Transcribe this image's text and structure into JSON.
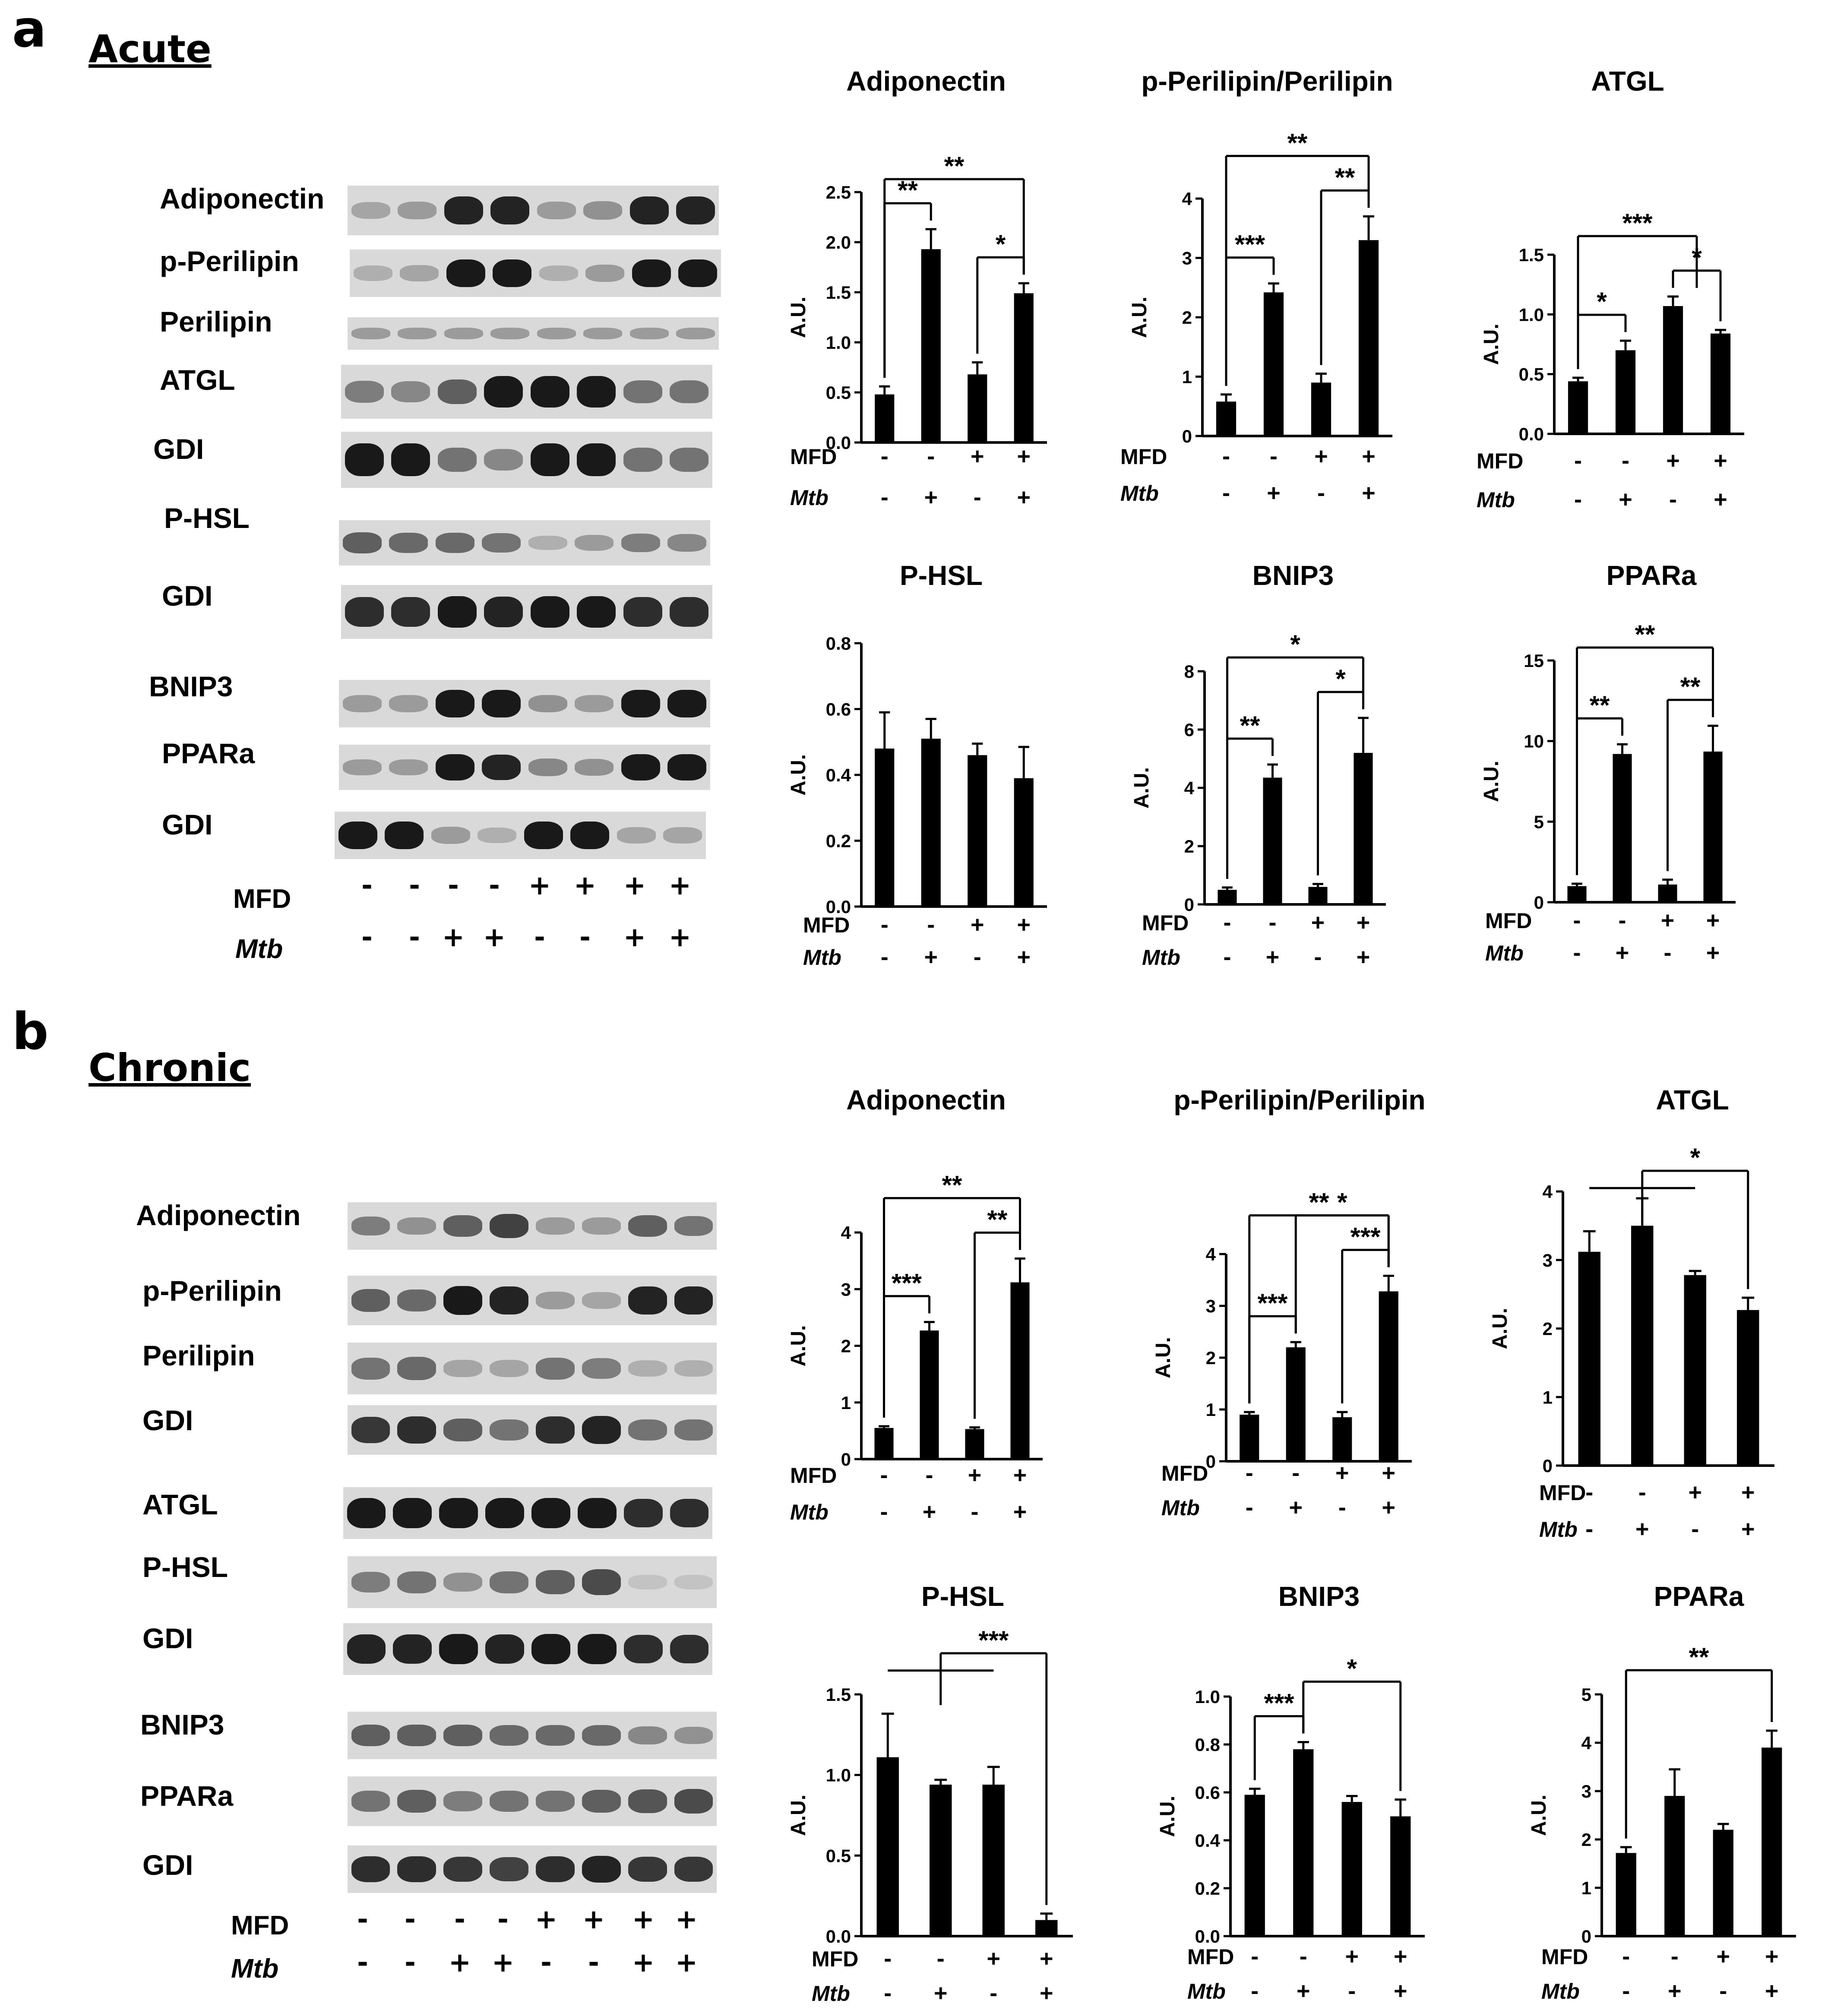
{
  "panels": [
    {
      "letter": "a",
      "title": "Acute",
      "blot_labels": [
        "Adiponectin",
        "p-Perilipin",
        "Perilipin",
        "ATGL",
        "GDI",
        "P-HSL",
        "GDI",
        "BNIP3",
        "PPARa",
        "GDI"
      ],
      "treatment_rows": [
        {
          "label": "MFD",
          "signs": [
            "-",
            "-",
            "-",
            "-",
            "+",
            "+",
            "+",
            "+"
          ]
        },
        {
          "label": "Mtb",
          "signs": [
            "-",
            "-",
            "+",
            "+",
            "-",
            "-",
            "+",
            "+"
          ]
        }
      ]
    },
    {
      "letter": "b",
      "title": "Chronic",
      "blot_labels": [
        "Adiponectin",
        "p-Perilipin",
        "Perilipin",
        "GDI",
        "ATGL",
        "P-HSL",
        "GDI",
        "BNIP3",
        "PPARa",
        "GDI"
      ],
      "treatment_rows": [
        {
          "label": "MFD",
          "signs": [
            "-",
            "-",
            "-",
            "-",
            "+",
            "+",
            "+",
            "+"
          ]
        },
        {
          "label": "Mtb",
          "signs": [
            "-",
            "-",
            "+",
            "+",
            "-",
            "-",
            "+",
            "+"
          ]
        }
      ]
    }
  ],
  "chart_data": [
    {
      "type": "bar",
      "title": "Adiponectin",
      "ylabel": "A.U.",
      "ylim": [
        0,
        2.5
      ],
      "yticks": [
        "0.0",
        "0.5",
        "1.0",
        "1.5",
        "2.0",
        "2.5"
      ],
      "values": [
        0.48,
        1.93,
        0.68,
        1.49
      ],
      "errors": [
        0.08,
        0.2,
        0.12,
        0.1
      ],
      "groups": {
        "MFD": [
          "-",
          "-",
          "+",
          "+"
        ],
        "Mtb": [
          "-",
          "+",
          "-",
          "+"
        ]
      },
      "significance": [
        {
          "from": 0,
          "to": 1,
          "label": "**"
        },
        {
          "from": 2,
          "to": 3,
          "label": "*"
        },
        {
          "from": 0,
          "to": 3,
          "label": "**"
        }
      ]
    },
    {
      "type": "bar",
      "title": "p-Perilipin/Perilipin",
      "ylabel": "A.U.",
      "ylim": [
        0,
        4
      ],
      "yticks": [
        "0",
        "1",
        "2",
        "3",
        "4"
      ],
      "values": [
        0.58,
        2.42,
        0.9,
        3.3
      ],
      "errors": [
        0.12,
        0.15,
        0.15,
        0.4
      ],
      "groups": {
        "MFD": [
          "-",
          "-",
          "+",
          "+"
        ],
        "Mtb": [
          "-",
          "+",
          "-",
          "+"
        ]
      },
      "significance": [
        {
          "from": 0,
          "to": 1,
          "label": "***"
        },
        {
          "from": 2,
          "to": 3,
          "label": "**"
        },
        {
          "from": 0,
          "to": 3,
          "label": "**"
        }
      ]
    },
    {
      "type": "bar",
      "title": "ATGL",
      "ylabel": "A.U.",
      "ylim": [
        0,
        1.5
      ],
      "yticks": [
        "0.0",
        "0.5",
        "1.0",
        "1.5"
      ],
      "values": [
        0.44,
        0.7,
        1.07,
        0.84
      ],
      "errors": [
        0.03,
        0.08,
        0.08,
        0.03
      ],
      "groups": {
        "MFD": [
          "-",
          "-",
          "+",
          "+"
        ],
        "Mtb": [
          "-",
          "+",
          "-",
          "+"
        ]
      },
      "significance": [
        {
          "from": 0,
          "to": 1,
          "label": "*"
        },
        {
          "from": 2,
          "to": 3,
          "label": "*"
        },
        {
          "from": 0,
          "to": "2-3",
          "label": "***"
        }
      ]
    },
    {
      "type": "bar",
      "title": "P-HSL",
      "ylabel": "A.U.",
      "ylim": [
        0,
        0.8
      ],
      "yticks": [
        "0.0",
        "0.2",
        "0.4",
        "0.6",
        "0.8"
      ],
      "values": [
        0.48,
        0.51,
        0.46,
        0.39
      ],
      "errors": [
        0.11,
        0.06,
        0.035,
        0.095
      ],
      "groups": {
        "MFD": [
          "-",
          "-",
          "+",
          "+"
        ],
        "Mtb": [
          "-",
          "+",
          "-",
          "+"
        ]
      },
      "significance": []
    },
    {
      "type": "bar",
      "title": "BNIP3",
      "ylabel": "A.U.",
      "ylim": [
        0,
        8
      ],
      "yticks": [
        "0",
        "2",
        "4",
        "6",
        "8"
      ],
      "values": [
        0.5,
        4.35,
        0.6,
        5.2
      ],
      "errors": [
        0.08,
        0.45,
        0.1,
        1.2
      ],
      "groups": {
        "MFD": [
          "-",
          "-",
          "+",
          "+"
        ],
        "Mtb": [
          "-",
          "+",
          "-",
          "+"
        ]
      },
      "significance": [
        {
          "from": 0,
          "to": 1,
          "label": "**"
        },
        {
          "from": 2,
          "to": 3,
          "label": "*"
        },
        {
          "from": 0,
          "to": 3,
          "label": "*"
        }
      ]
    },
    {
      "type": "bar",
      "title": "PPARa",
      "ylabel": "A.U.",
      "ylim": [
        0,
        15
      ],
      "yticks": [
        "0",
        "5",
        "10",
        "15"
      ],
      "values": [
        1.0,
        9.2,
        1.1,
        9.35
      ],
      "errors": [
        0.15,
        0.6,
        0.3,
        1.6
      ],
      "groups": {
        "MFD": [
          "-",
          "-",
          "+",
          "+"
        ],
        "Mtb": [
          "-",
          "+",
          "-",
          "+"
        ]
      },
      "significance": [
        {
          "from": 0,
          "to": 1,
          "label": "**"
        },
        {
          "from": 2,
          "to": 3,
          "label": "**"
        },
        {
          "from": 0,
          "to": 3,
          "label": "**"
        }
      ]
    },
    {
      "type": "bar",
      "title": "Adiponectin",
      "ylabel": "A.U.",
      "ylim": [
        0,
        4
      ],
      "yticks": [
        "0",
        "1",
        "2",
        "3",
        "4"
      ],
      "values": [
        0.55,
        2.27,
        0.53,
        3.12
      ],
      "errors": [
        0.03,
        0.15,
        0.03,
        0.42
      ],
      "groups": {
        "MFD": [
          "-",
          "-",
          "+",
          "+"
        ],
        "Mtb": [
          "-",
          "+",
          "-",
          "+"
        ]
      },
      "significance": [
        {
          "from": 0,
          "to": 1,
          "label": "***"
        },
        {
          "from": 2,
          "to": 3,
          "label": "**"
        },
        {
          "from": 0,
          "to": 3,
          "label": "**"
        }
      ]
    },
    {
      "type": "bar",
      "title": "p-Perilipin/Perilipin",
      "ylabel": "A.U.",
      "ylim": [
        0,
        4
      ],
      "yticks": [
        "0",
        "1",
        "2",
        "3",
        "4"
      ],
      "values": [
        0.9,
        2.2,
        0.85,
        3.28
      ],
      "errors": [
        0.05,
        0.1,
        0.1,
        0.3
      ],
      "groups": {
        "MFD": [
          "-",
          "-",
          "+",
          "+"
        ],
        "Mtb": [
          "-",
          "+",
          "-",
          "+"
        ]
      },
      "significance": [
        {
          "from": 0,
          "to": 1,
          "label": "***"
        },
        {
          "from": 2,
          "to": 3,
          "label": "***"
        },
        {
          "from": 0,
          "to": 3,
          "label": "**"
        },
        {
          "from": 1,
          "to": 3,
          "label": "*"
        }
      ]
    },
    {
      "type": "bar",
      "title": "ATGL",
      "ylabel": "A.U.",
      "ylim": [
        0,
        4
      ],
      "yticks": [
        "0",
        "1",
        "2",
        "3",
        "4"
      ],
      "values": [
        3.12,
        3.5,
        2.78,
        2.27
      ],
      "errors": [
        0.3,
        0.4,
        0.06,
        0.18
      ],
      "groups": {
        "MFD": [
          "-",
          "-",
          "+",
          "+"
        ],
        "Mtb": [
          "-",
          "+",
          "-",
          "+"
        ]
      },
      "significance": [
        {
          "from": "0-2",
          "to": 3,
          "label": "*"
        }
      ]
    },
    {
      "type": "bar",
      "title": "P-HSL",
      "ylabel": "A.U.",
      "ylim": [
        0,
        1.5
      ],
      "yticks": [
        "0.0",
        "0.5",
        "1.0",
        "1.5"
      ],
      "values": [
        1.11,
        0.94,
        0.94,
        0.1
      ],
      "errors": [
        0.27,
        0.03,
        0.11,
        0.04
      ],
      "groups": {
        "MFD": [
          "-",
          "-",
          "+",
          "+"
        ],
        "Mtb": [
          "-",
          "+",
          "-",
          "+"
        ]
      },
      "significance": [
        {
          "from": "0-2",
          "to": 3,
          "label": "***"
        }
      ]
    },
    {
      "type": "bar",
      "title": "BNIP3",
      "ylabel": "A.U.",
      "ylim": [
        0,
        1.0
      ],
      "yticks": [
        "0.0",
        "0.2",
        "0.4",
        "0.6",
        "0.8",
        "1.0"
      ],
      "values": [
        0.59,
        0.78,
        0.56,
        0.5
      ],
      "errors": [
        0.025,
        0.03,
        0.025,
        0.07
      ],
      "groups": {
        "MFD": [
          "-",
          "-",
          "+",
          "+"
        ],
        "Mtb": [
          "-",
          "+",
          "-",
          "+"
        ]
      },
      "significance": [
        {
          "from": 0,
          "to": 1,
          "label": "***"
        },
        {
          "from": 1,
          "to": 3,
          "label": "*"
        }
      ]
    },
    {
      "type": "bar",
      "title": "PPARa",
      "ylabel": "A.U.",
      "ylim": [
        0,
        5
      ],
      "yticks": [
        "0",
        "1",
        "2",
        "3",
        "4",
        "5"
      ],
      "values": [
        1.72,
        2.9,
        2.2,
        3.9
      ],
      "errors": [
        0.12,
        0.55,
        0.12,
        0.35
      ],
      "groups": {
        "MFD": [
          "-",
          "-",
          "+",
          "+"
        ],
        "Mtb": [
          "-",
          "+",
          "-",
          "+"
        ]
      },
      "significance": [
        {
          "from": 0,
          "to": 3,
          "label": "**"
        }
      ]
    }
  ],
  "style": {
    "bar_color": "#000000",
    "background": "#ffffff"
  }
}
